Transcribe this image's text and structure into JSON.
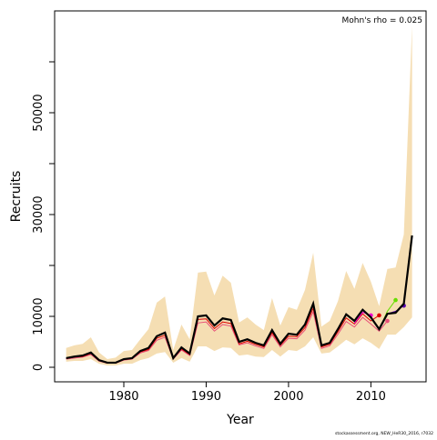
{
  "chart_data": {
    "type": "band_line",
    "annotation": "Mohn's rho = 0.025",
    "footer": "stockassessment.org, NEW_HeR30_2016, r7032",
    "xlabel": "Year",
    "ylabel": "Recruits",
    "xlim": [
      1971.6,
      2016.7
    ],
    "xticks": [
      1980,
      1990,
      2000,
      2010
    ],
    "ylim": [
      -2857,
      70000
    ],
    "yticks": [
      0,
      10000,
      30000,
      50000
    ],
    "yticks_minor": [
      20000,
      40000,
      60000
    ],
    "band_color": "#f5deb3",
    "x": [
      1973,
      1974,
      1975,
      1976,
      1977,
      1978,
      1979,
      1980,
      1981,
      1982,
      1983,
      1984,
      1985,
      1986,
      1987,
      1988,
      1989,
      1990,
      1991,
      1992,
      1993,
      1994,
      1995,
      1996,
      1997,
      1998,
      1999,
      2000,
      2001,
      2002,
      2003,
      2004,
      2005,
      2006,
      2007,
      2008,
      2009,
      2010,
      2011,
      2012,
      2013,
      2014,
      2015
    ],
    "band_upper": [
      3800,
      4300,
      4600,
      5900,
      2900,
      1600,
      1900,
      3200,
      3400,
      5500,
      7500,
      12700,
      13900,
      3400,
      8400,
      5500,
      18600,
      18800,
      14100,
      18000,
      16600,
      8800,
      9800,
      8400,
      7300,
      13600,
      8200,
      11800,
      11300,
      15200,
      22500,
      8000,
      9100,
      13000,
      18900,
      15400,
      20500,
      16800,
      12000,
      19300,
      19600,
      26100,
      67100
    ],
    "band_lower": [
      1100,
      1250,
      1250,
      1600,
      700,
      350,
      350,
      700,
      700,
      1400,
      1800,
      2700,
      3000,
      900,
      1800,
      1100,
      4100,
      4100,
      3200,
      3900,
      3800,
      2300,
      2500,
      2100,
      2000,
      3400,
      2100,
      3400,
      3200,
      4100,
      5900,
      2700,
      2900,
      4100,
      5400,
      4500,
      5700,
      4800,
      3600,
      6400,
      6400,
      7900,
      9800
    ],
    "series": [
      {
        "color": "#e8507a",
        "values": [
          1600,
          1800,
          2000,
          2500,
          1200,
          800,
          800,
          1400,
          1600,
          2800,
          3300,
          5300,
          5900,
          1600,
          3400,
          2300,
          8700,
          8900,
          7100,
          8400,
          8100,
          4400,
          4800,
          4200,
          3700,
          6400,
          4000,
          5700,
          5600,
          7300,
          10900,
          3700,
          4200,
          6500,
          9000,
          7900,
          9800,
          8500,
          7100,
          9100,
          null,
          null,
          null
        ]
      },
      {
        "color": "#dd0000",
        "values": [
          1700,
          2000,
          2100,
          2700,
          1300,
          800,
          800,
          1500,
          1700,
          3000,
          3500,
          5700,
          6300,
          1700,
          3600,
          2500,
          9400,
          9500,
          7600,
          8900,
          8600,
          4600,
          5100,
          4500,
          4000,
          6800,
          4300,
          6100,
          6000,
          7800,
          11600,
          4000,
          4500,
          7000,
          9700,
          8500,
          10500,
          9100,
          10200,
          null,
          null,
          null,
          null
        ]
      },
      {
        "color": "#ee00cc",
        "values": [
          null,
          null,
          null,
          null,
          null,
          null,
          null,
          null,
          null,
          null,
          null,
          null,
          null,
          null,
          null,
          null,
          null,
          null,
          null,
          null,
          null,
          null,
          null,
          null,
          null,
          null,
          null,
          null,
          null,
          null,
          null,
          null,
          null,
          null,
          null,
          8600,
          10800,
          10200,
          null,
          null,
          null,
          null,
          null
        ]
      },
      {
        "color": "#66dd00",
        "values": [
          null,
          null,
          null,
          null,
          null,
          null,
          null,
          null,
          null,
          null,
          null,
          null,
          null,
          null,
          null,
          null,
          null,
          null,
          null,
          null,
          null,
          null,
          null,
          null,
          null,
          null,
          null,
          null,
          null,
          null,
          null,
          null,
          null,
          null,
          null,
          9100,
          11300,
          9800,
          7400,
          11000,
          13200,
          null,
          null
        ]
      },
      {
        "color": "#5500aa",
        "values": [
          null,
          null,
          null,
          null,
          null,
          null,
          null,
          null,
          null,
          null,
          null,
          null,
          null,
          null,
          null,
          null,
          null,
          null,
          null,
          null,
          null,
          null,
          null,
          null,
          null,
          null,
          null,
          null,
          null,
          null,
          null,
          null,
          null,
          null,
          null,
          9100,
          11300,
          9800,
          7500,
          10500,
          11000,
          12100,
          null
        ]
      },
      {
        "color": "#000000",
        "values": [
          1800,
          2100,
          2300,
          2900,
          1400,
          900,
          900,
          1600,
          1800,
          3200,
          3800,
          6100,
          6800,
          1800,
          3900,
          2700,
          10000,
          10200,
          8200,
          9600,
          9300,
          5000,
          5500,
          4800,
          4300,
          7300,
          4600,
          6600,
          6400,
          8400,
          12500,
          4300,
          4800,
          7500,
          10400,
          9100,
          11300,
          9800,
          7500,
          10500,
          10700,
          12500,
          25900
        ]
      }
    ]
  }
}
